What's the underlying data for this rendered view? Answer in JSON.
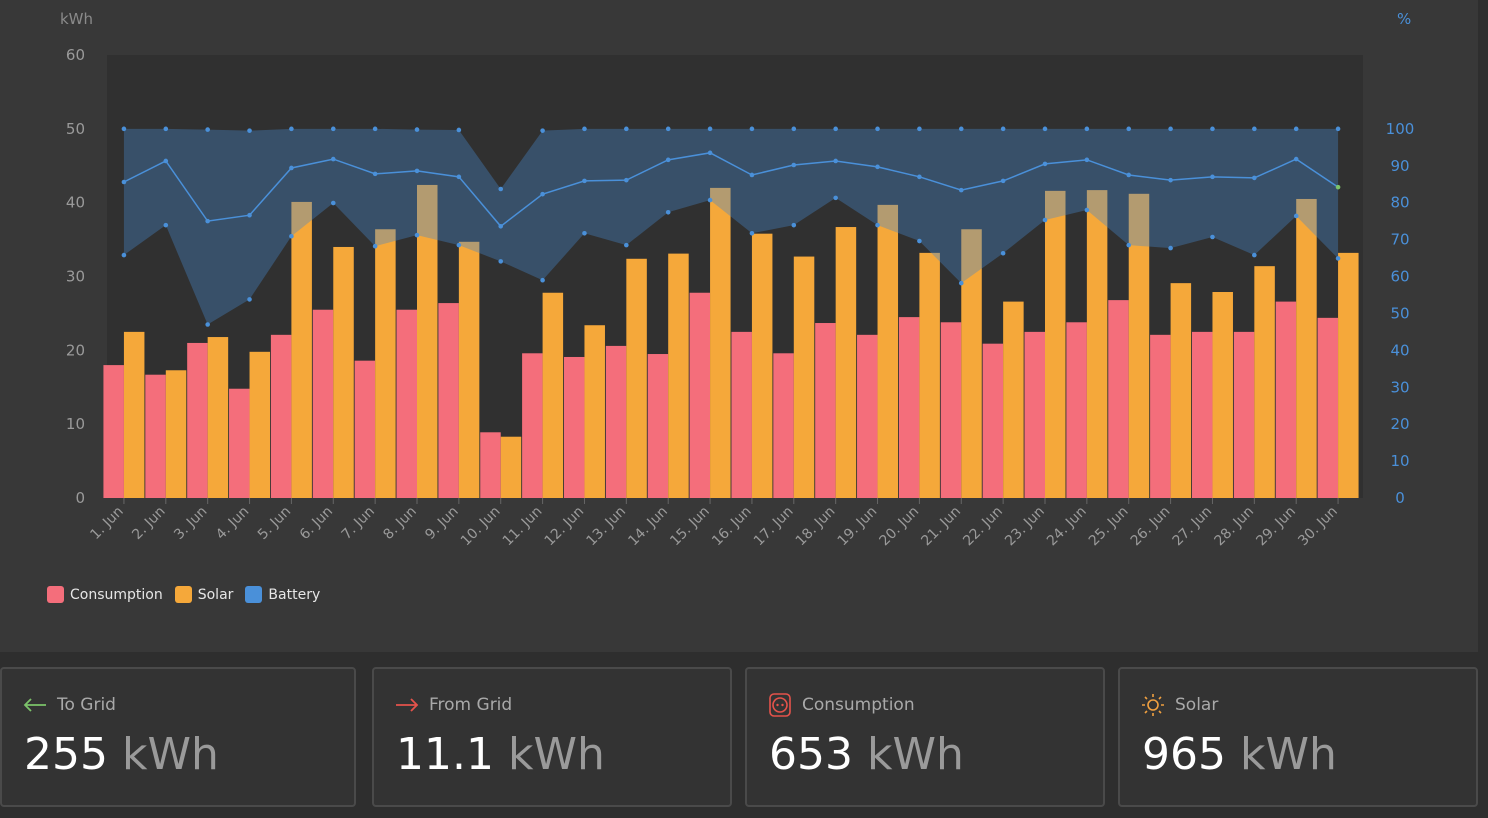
{
  "chart_data": {
    "type": "bar",
    "left_axis_label": "kWh",
    "right_axis_label": "%",
    "left_ylim": [
      0,
      60
    ],
    "left_ticks": [
      "0",
      "10",
      "20",
      "30",
      "40",
      "50",
      "60"
    ],
    "right_ylim": [
      0,
      120
    ],
    "right_ticks": [
      "0",
      "10",
      "20",
      "30",
      "40",
      "50",
      "60",
      "70",
      "80",
      "90",
      "100"
    ],
    "categories": [
      "1. Jun",
      "2. Jun",
      "3. Jun",
      "4. Jun",
      "5. Jun",
      "6. Jun",
      "7. Jun",
      "8. Jun",
      "9. Jun",
      "10. Jun",
      "11. Jun",
      "12. Jun",
      "13. Jun",
      "14. Jun",
      "15. Jun",
      "16. Jun",
      "17. Jun",
      "18. Jun",
      "19. Jun",
      "20. Jun",
      "21. Jun",
      "22. Jun",
      "23. Jun",
      "24. Jun",
      "25. Jun",
      "26. Jun",
      "27. Jun",
      "28. Jun",
      "29. Jun",
      "30. Jun"
    ],
    "series": [
      {
        "name": "Consumption",
        "color": "#f46e7b",
        "unit": "kWh",
        "values": [
          18.0,
          16.7,
          21.0,
          14.8,
          22.1,
          25.5,
          18.6,
          25.5,
          26.4,
          8.9,
          19.6,
          19.1,
          20.6,
          19.5,
          27.8,
          22.5,
          19.6,
          23.7,
          22.1,
          24.5,
          23.8,
          20.9,
          22.5,
          23.8,
          26.8,
          22.1,
          22.5,
          22.5,
          26.6,
          24.4
        ]
      },
      {
        "name": "Solar",
        "color": "#f5a83a",
        "unit": "kWh",
        "values": [
          22.5,
          17.3,
          21.8,
          19.8,
          40.1,
          34.0,
          36.4,
          42.4,
          34.7,
          8.3,
          27.8,
          23.4,
          32.4,
          33.1,
          42.0,
          35.8,
          32.7,
          36.7,
          39.7,
          33.2,
          36.4,
          26.6,
          41.6,
          41.7,
          41.2,
          29.1,
          27.9,
          31.4,
          40.5,
          33.2
        ]
      },
      {
        "name": "Battery",
        "color": "#4a90d9",
        "unit": "%",
        "max": [
          100,
          100,
          99.8,
          99.5,
          100,
          100,
          100,
          99.8,
          99.7,
          83.7,
          99.5,
          100,
          100,
          100,
          100,
          100,
          100,
          100,
          100,
          100,
          100,
          100,
          100,
          100,
          100,
          100,
          100,
          100,
          100,
          100
        ],
        "mean": [
          85.6,
          91.3,
          75.0,
          76.6,
          89.4,
          91.8,
          87.8,
          88.6,
          87.0,
          73.6,
          82.3,
          85.9,
          86.1,
          91.6,
          93.5,
          87.5,
          90.2,
          91.3,
          89.7,
          87.0,
          83.4,
          85.9,
          90.5,
          91.6,
          87.5,
          86.1,
          87.0,
          86.7,
          91.8,
          84.2
        ],
        "min": [
          65.8,
          73.9,
          47.0,
          53.8,
          70.9,
          79.9,
          68.2,
          71.2,
          68.5,
          64.1,
          59.0,
          71.7,
          68.5,
          77.4,
          80.7,
          71.7,
          73.9,
          81.3,
          73.9,
          69.6,
          58.2,
          66.3,
          75.3,
          78.0,
          68.5,
          67.7,
          70.7,
          65.8,
          76.4,
          64.9
        ]
      }
    ],
    "legend_position": "bottom-left"
  },
  "cards": [
    {
      "label": "To Grid",
      "value": "255",
      "unit": "kWh",
      "icon": "arrow-left-icon",
      "icon_color": "#7cc36a"
    },
    {
      "label": "From Grid",
      "value": "11.1",
      "unit": "kWh",
      "icon": "arrow-right-icon",
      "icon_color": "#e5534b"
    },
    {
      "label": "Consumption",
      "value": "653",
      "unit": "kWh",
      "icon": "power-socket-icon",
      "icon_color": "#e5534b"
    },
    {
      "label": "Solar",
      "value": "965",
      "unit": "kWh",
      "icon": "sun-icon",
      "icon_color": "#f0a040"
    }
  ]
}
